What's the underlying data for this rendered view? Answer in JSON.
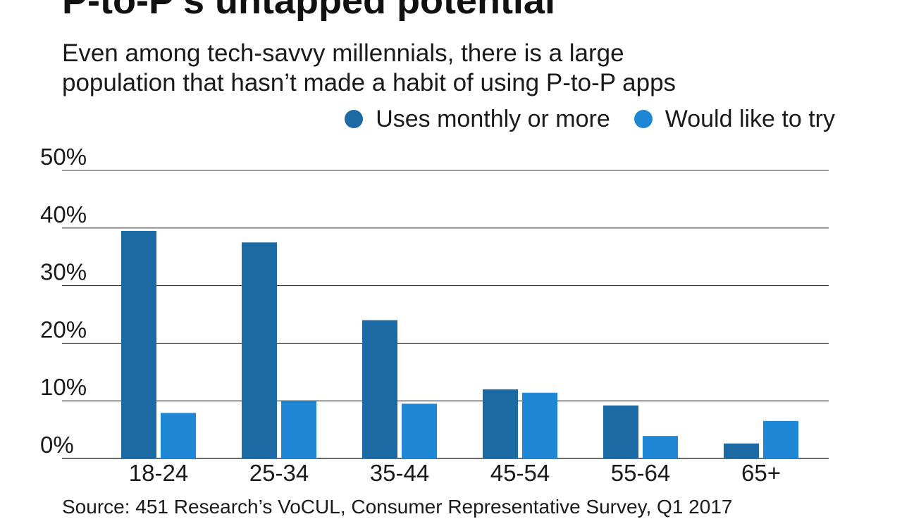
{
  "header": {
    "title": "P-to-P’s untapped potential",
    "subtitle_line1": "Even among tech-savvy millennials, there is a large",
    "subtitle_line2": "population that hasn’t made a habit of using P-to-P apps"
  },
  "footer": {
    "source": "Source: 451 Research’s VoCUL, Consumer Representative Survey, Q1 2017"
  },
  "colors": {
    "uses_monthly": "#1b6aa3",
    "would_like_to_try": "#1e88d6",
    "gridline": "#3a3a3a",
    "text": "#1a1a1a"
  },
  "chart_data": {
    "type": "bar",
    "title": "P-to-P’s untapped potential",
    "subtitle": "Even among tech-savvy millennials, there is a large population that hasn’t made a habit of using P-to-P apps",
    "xlabel": "",
    "ylabel": "",
    "categories": [
      "18-24",
      "25-34",
      "35-44",
      "45-54",
      "55-64",
      "65+"
    ],
    "series": [
      {
        "name": "Uses monthly or more",
        "color": "#1b6aa3",
        "values": [
          39.5,
          37.5,
          24,
          12,
          9.2,
          2.6
        ]
      },
      {
        "name": "Would like to try",
        "color": "#1e88d6",
        "values": [
          7.9,
          10,
          9.5,
          11.4,
          3.9,
          6.5
        ]
      }
    ],
    "ylim": [
      0,
      50
    ],
    "yticks": [
      0,
      10,
      20,
      30,
      40,
      50
    ],
    "ytick_labels": [
      "0%",
      "10%",
      "20%",
      "30%",
      "40%",
      "50%"
    ],
    "grid": true,
    "legend": "top-right"
  }
}
